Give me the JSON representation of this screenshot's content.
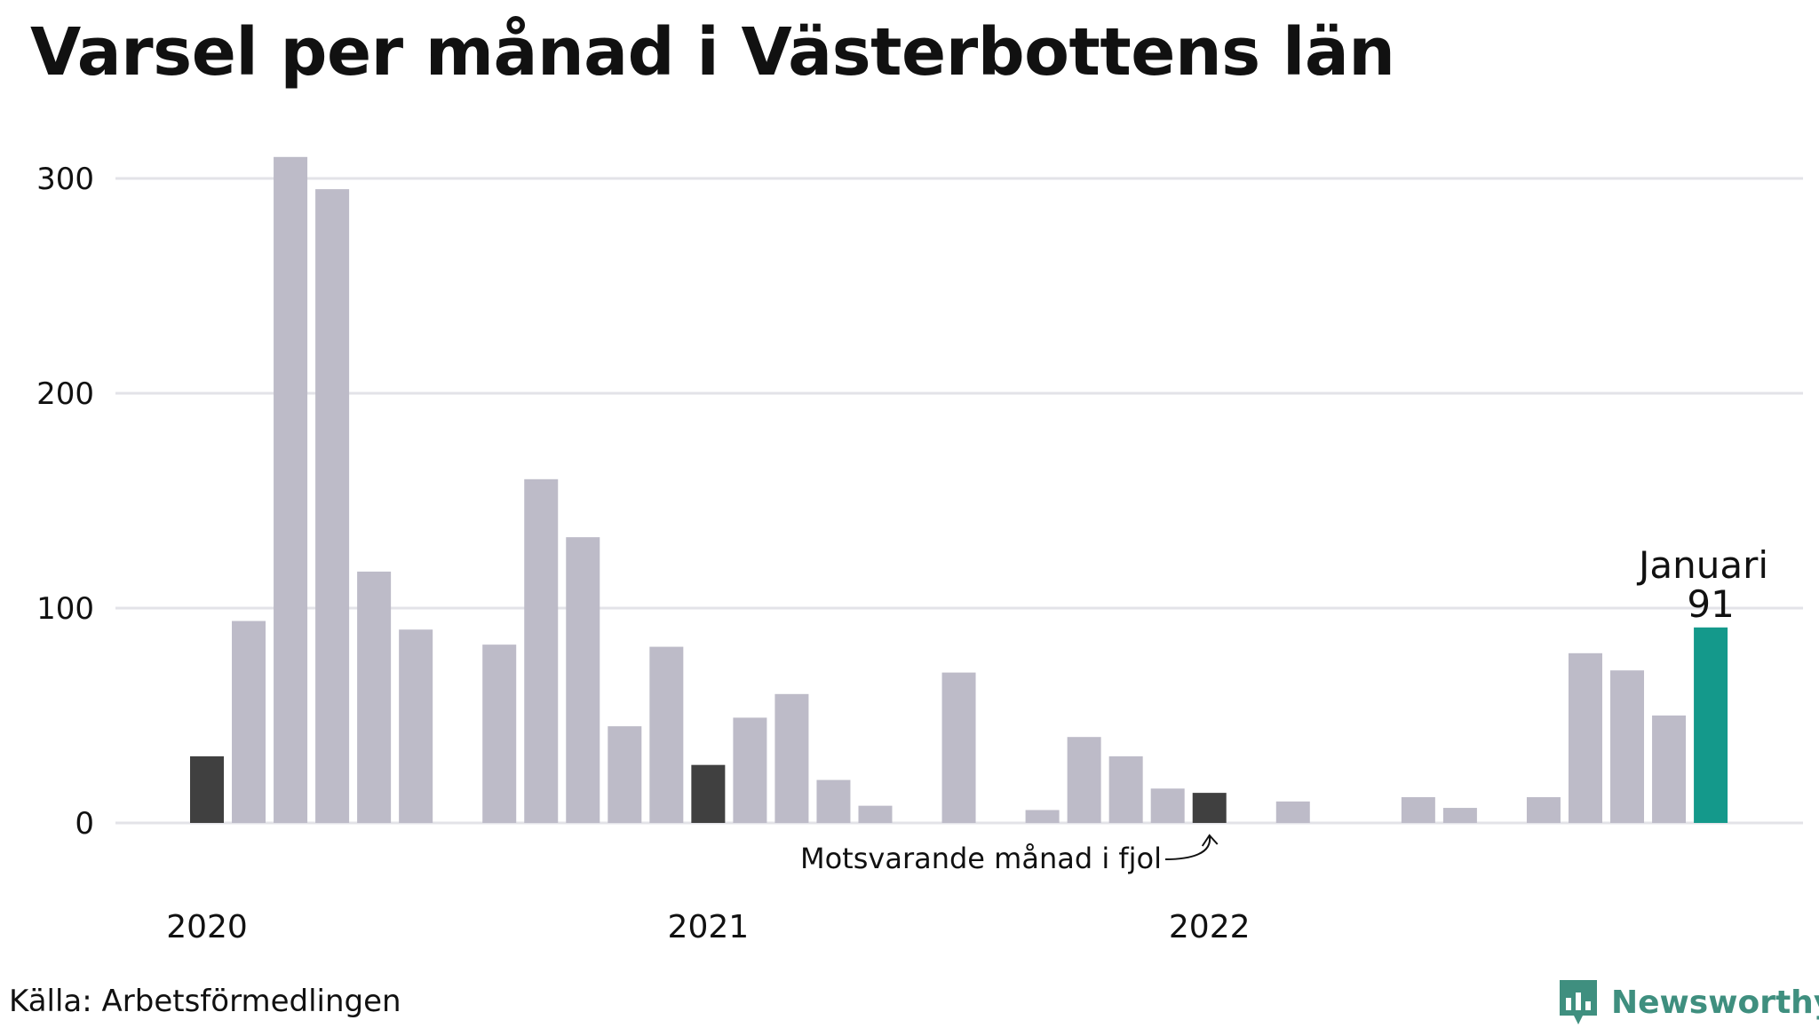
{
  "title": "Varsel per månad i Västerbottens län",
  "source": "Källa: Arbetsförmedlingen",
  "brand": "Newsworthy",
  "colors": {
    "default_bar": "#bdbbc8",
    "comparison_bar": "#404040",
    "highlight_bar": "#14998b",
    "grid": "#e3e3e8",
    "brand": "#3f8f7f"
  },
  "annotations": {
    "highlight_month": "Januari",
    "highlight_value": "91",
    "comparison_note": "Motsvarande månad i fjol"
  },
  "chart_data": {
    "type": "bar",
    "title": "Varsel per månad i Västerbottens län",
    "xlabel": "",
    "ylabel": "",
    "ylim": [
      0,
      320
    ],
    "yticks": [
      0,
      100,
      200,
      300
    ],
    "grid": true,
    "x_tick_labels": [
      {
        "label": "2020",
        "at": "2020-01"
      },
      {
        "label": "2021",
        "at": "2021-01"
      },
      {
        "label": "2022",
        "at": "2022-01"
      }
    ],
    "categories": [
      "2020-01",
      "2020-02",
      "2020-03",
      "2020-04",
      "2020-05",
      "2020-06",
      "2020-07",
      "2020-08",
      "2020-09",
      "2020-10",
      "2020-11",
      "2020-12",
      "2021-01",
      "2021-02",
      "2021-03",
      "2021-04",
      "2021-05",
      "2021-06",
      "2021-07",
      "2021-08",
      "2021-09",
      "2021-10",
      "2021-11",
      "2021-12",
      "2022-01",
      "2022-02",
      "2022-03",
      "2022-04",
      "2022-05",
      "2022-06",
      "2022-07",
      "2022-08",
      "2022-09",
      "2022-10",
      "2022-11",
      "2022-12",
      "2023-01"
    ],
    "values": [
      31,
      94,
      310,
      295,
      117,
      90,
      0,
      83,
      160,
      133,
      45,
      82,
      27,
      49,
      60,
      20,
      8,
      0,
      70,
      0,
      6,
      40,
      31,
      16,
      14,
      0,
      10,
      0,
      0,
      12,
      7,
      0,
      12,
      79,
      71,
      50,
      91
    ],
    "comparison_months": [
      "2020-01",
      "2021-01",
      "2022-01"
    ],
    "highlight_month": "2023-01"
  }
}
